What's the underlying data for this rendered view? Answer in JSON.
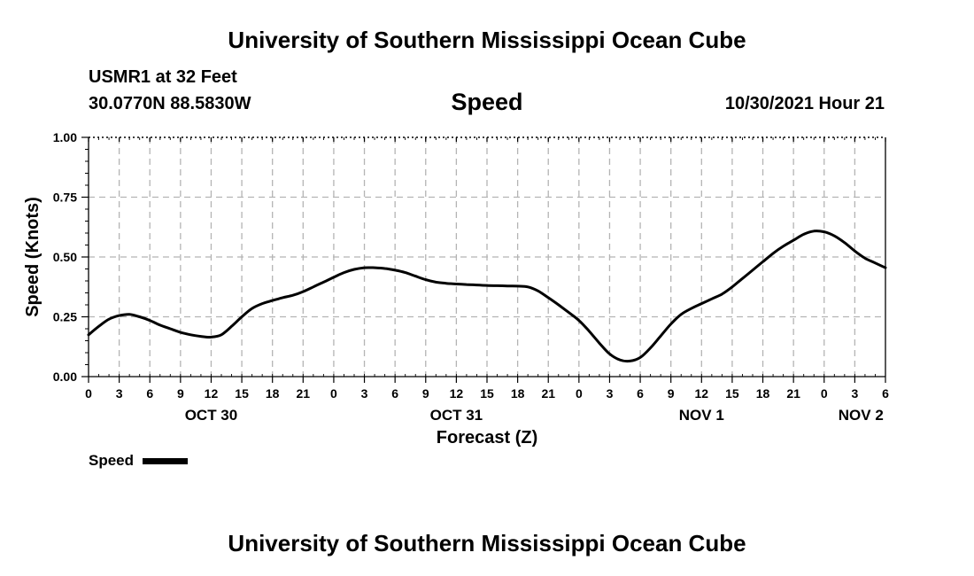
{
  "header": {
    "title": "University of Southern Mississippi Ocean Cube",
    "station": "USMR1 at 32 Feet",
    "coords": "30.0770N  88.5830W",
    "chart_title": "Speed",
    "valid_time": "10/30/2021 Hour 21"
  },
  "footer": {
    "title": "University of Southern Mississippi Ocean Cube"
  },
  "chart_data": {
    "type": "line",
    "title": "Speed",
    "xlabel": "Forecast (Z)",
    "ylabel": "Speed (Knots)",
    "ylim": [
      0,
      1
    ],
    "yticks": [
      "0.00",
      "0.25",
      "0.50",
      "0.75",
      "1.00"
    ],
    "xlim_hours": [
      0,
      78
    ],
    "xtick_labels": [
      "0",
      "3",
      "6",
      "9",
      "12",
      "15",
      "18",
      "21",
      "0",
      "3",
      "6",
      "9",
      "12",
      "15",
      "18",
      "21",
      "0",
      "3",
      "6",
      "9",
      "12",
      "15",
      "18",
      "21",
      "0",
      "3",
      "6"
    ],
    "day_labels": [
      {
        "label": "OCT 30",
        "hour": 12
      },
      {
        "label": "OCT 31",
        "hour": 36
      },
      {
        "label": "NOV 1",
        "hour": 60
      },
      {
        "label": "NOV 2",
        "hour": 75.6
      }
    ],
    "grid": true,
    "legend": "bottom-left",
    "series": [
      {
        "name": "Speed",
        "color": "#000000",
        "x_hours": [
          0,
          1,
          2,
          3,
          4,
          5,
          6,
          7,
          8,
          9,
          10,
          11,
          12,
          13,
          14,
          15,
          16,
          17,
          18,
          19,
          20,
          21,
          22,
          23,
          24,
          25,
          26,
          27,
          28,
          29,
          30,
          31,
          32,
          33,
          34,
          35,
          36,
          37,
          38,
          39,
          40,
          41,
          42,
          43,
          44,
          45,
          46,
          47,
          48,
          49,
          50,
          51,
          52,
          53,
          54,
          55,
          56,
          57,
          58,
          59,
          60,
          61,
          62,
          63,
          64,
          65,
          66,
          67,
          68,
          69,
          70,
          71,
          72,
          73,
          74,
          75,
          76,
          77,
          78
        ],
        "values": [
          0.175,
          0.21,
          0.24,
          0.255,
          0.26,
          0.25,
          0.235,
          0.215,
          0.2,
          0.185,
          0.175,
          0.168,
          0.165,
          0.175,
          0.21,
          0.25,
          0.285,
          0.305,
          0.318,
          0.33,
          0.34,
          0.355,
          0.375,
          0.395,
          0.415,
          0.435,
          0.448,
          0.455,
          0.455,
          0.452,
          0.445,
          0.435,
          0.42,
          0.405,
          0.395,
          0.39,
          0.387,
          0.385,
          0.383,
          0.381,
          0.38,
          0.379,
          0.378,
          0.375,
          0.358,
          0.33,
          0.3,
          0.268,
          0.235,
          0.19,
          0.14,
          0.095,
          0.07,
          0.065,
          0.08,
          0.12,
          0.17,
          0.22,
          0.26,
          0.285,
          0.305,
          0.325,
          0.345,
          0.375,
          0.41,
          0.445,
          0.48,
          0.515,
          0.545,
          0.57,
          0.595,
          0.608,
          0.605,
          0.588,
          0.56,
          0.525,
          0.495,
          0.475,
          0.455
        ]
      }
    ]
  },
  "legend": {
    "label": "Speed"
  }
}
